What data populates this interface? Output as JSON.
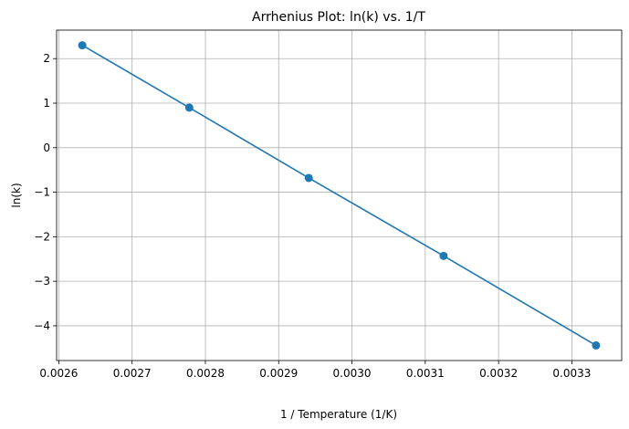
{
  "chart_data": {
    "type": "line",
    "title": "Arrhenius Plot: ln(k) vs. 1/T",
    "xlabel": "1 / Temperature (1/K)",
    "ylabel": "ln(k)",
    "x": [
      0.002632,
      0.002778,
      0.002941,
      0.003125,
      0.003333
    ],
    "series": [
      {
        "values": [
          2.3,
          0.9,
          -0.68,
          -2.43,
          -4.44
        ],
        "color": "#1f77b4",
        "marker": "circle"
      }
    ],
    "xlim": [
      0.002597,
      0.003368
    ],
    "ylim": [
      -4.78,
      2.64
    ],
    "xticks": [
      0.0026,
      0.0027,
      0.0028,
      0.0029,
      0.003,
      0.0031,
      0.0032,
      0.0033
    ],
    "xtick_labels": [
      "0.0026",
      "0.0027",
      "0.0028",
      "0.0029",
      "0.0030",
      "0.0031",
      "0.0032",
      "0.0033"
    ],
    "yticks": [
      2,
      1,
      0,
      -1,
      -2,
      -3,
      -4
    ],
    "ytick_labels": [
      "2",
      "1",
      "0",
      "−1",
      "−2",
      "−3",
      "−4"
    ],
    "grid": true
  }
}
